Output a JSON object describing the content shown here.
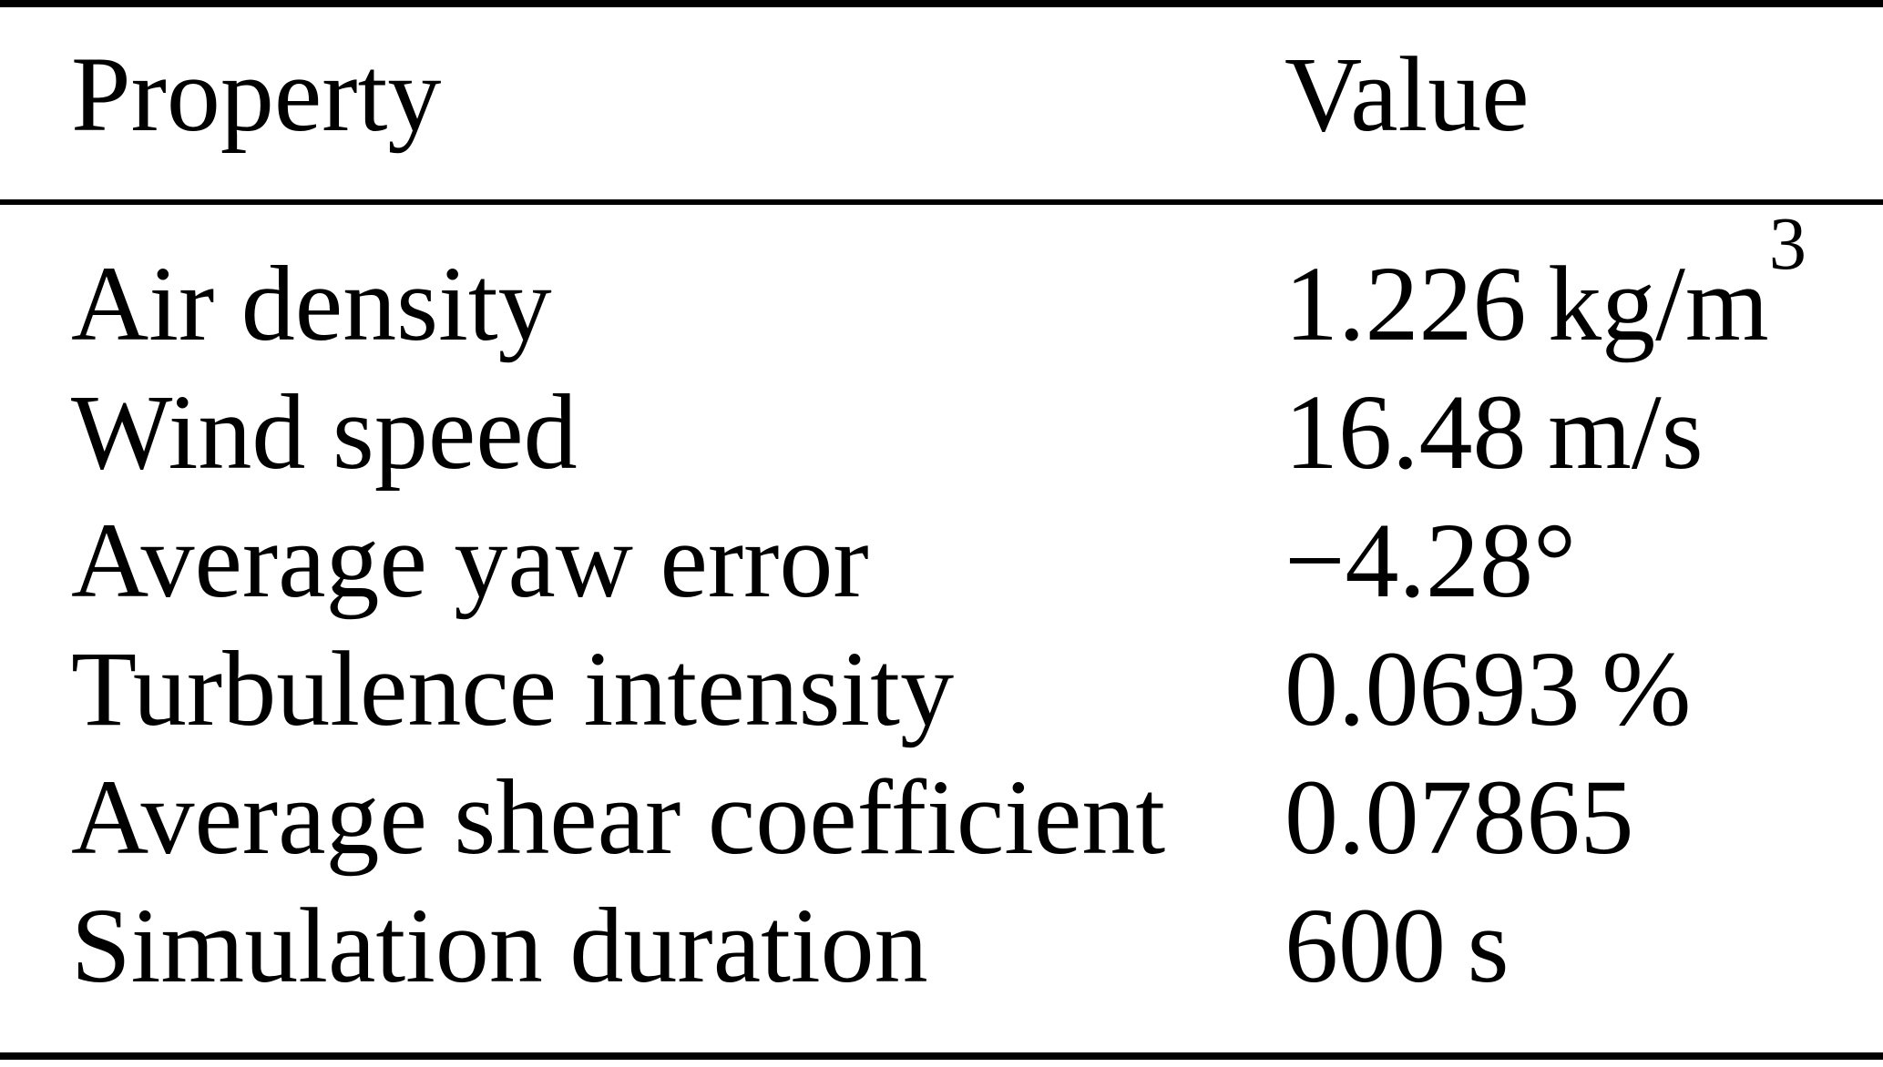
{
  "table": {
    "headers": {
      "property": "Property",
      "value": "Value"
    },
    "rows": [
      {
        "property": "Air density",
        "value": "1.226 kg/m",
        "value_sup": "3"
      },
      {
        "property": "Wind speed",
        "value": "16.48 m/s",
        "value_sup": ""
      },
      {
        "property": "Average yaw error",
        "value": "−4.28°",
        "value_sup": ""
      },
      {
        "property": "Turbulence intensity",
        "value": "0.0693 %",
        "value_sup": ""
      },
      {
        "property": "Average shear coefficient",
        "value": "0.07865",
        "value_sup": ""
      },
      {
        "property": "Simulation duration",
        "value": "600 s",
        "value_sup": ""
      }
    ]
  },
  "colors": {
    "background": "#ffffff",
    "text": "#000000",
    "rule": "#000000"
  }
}
